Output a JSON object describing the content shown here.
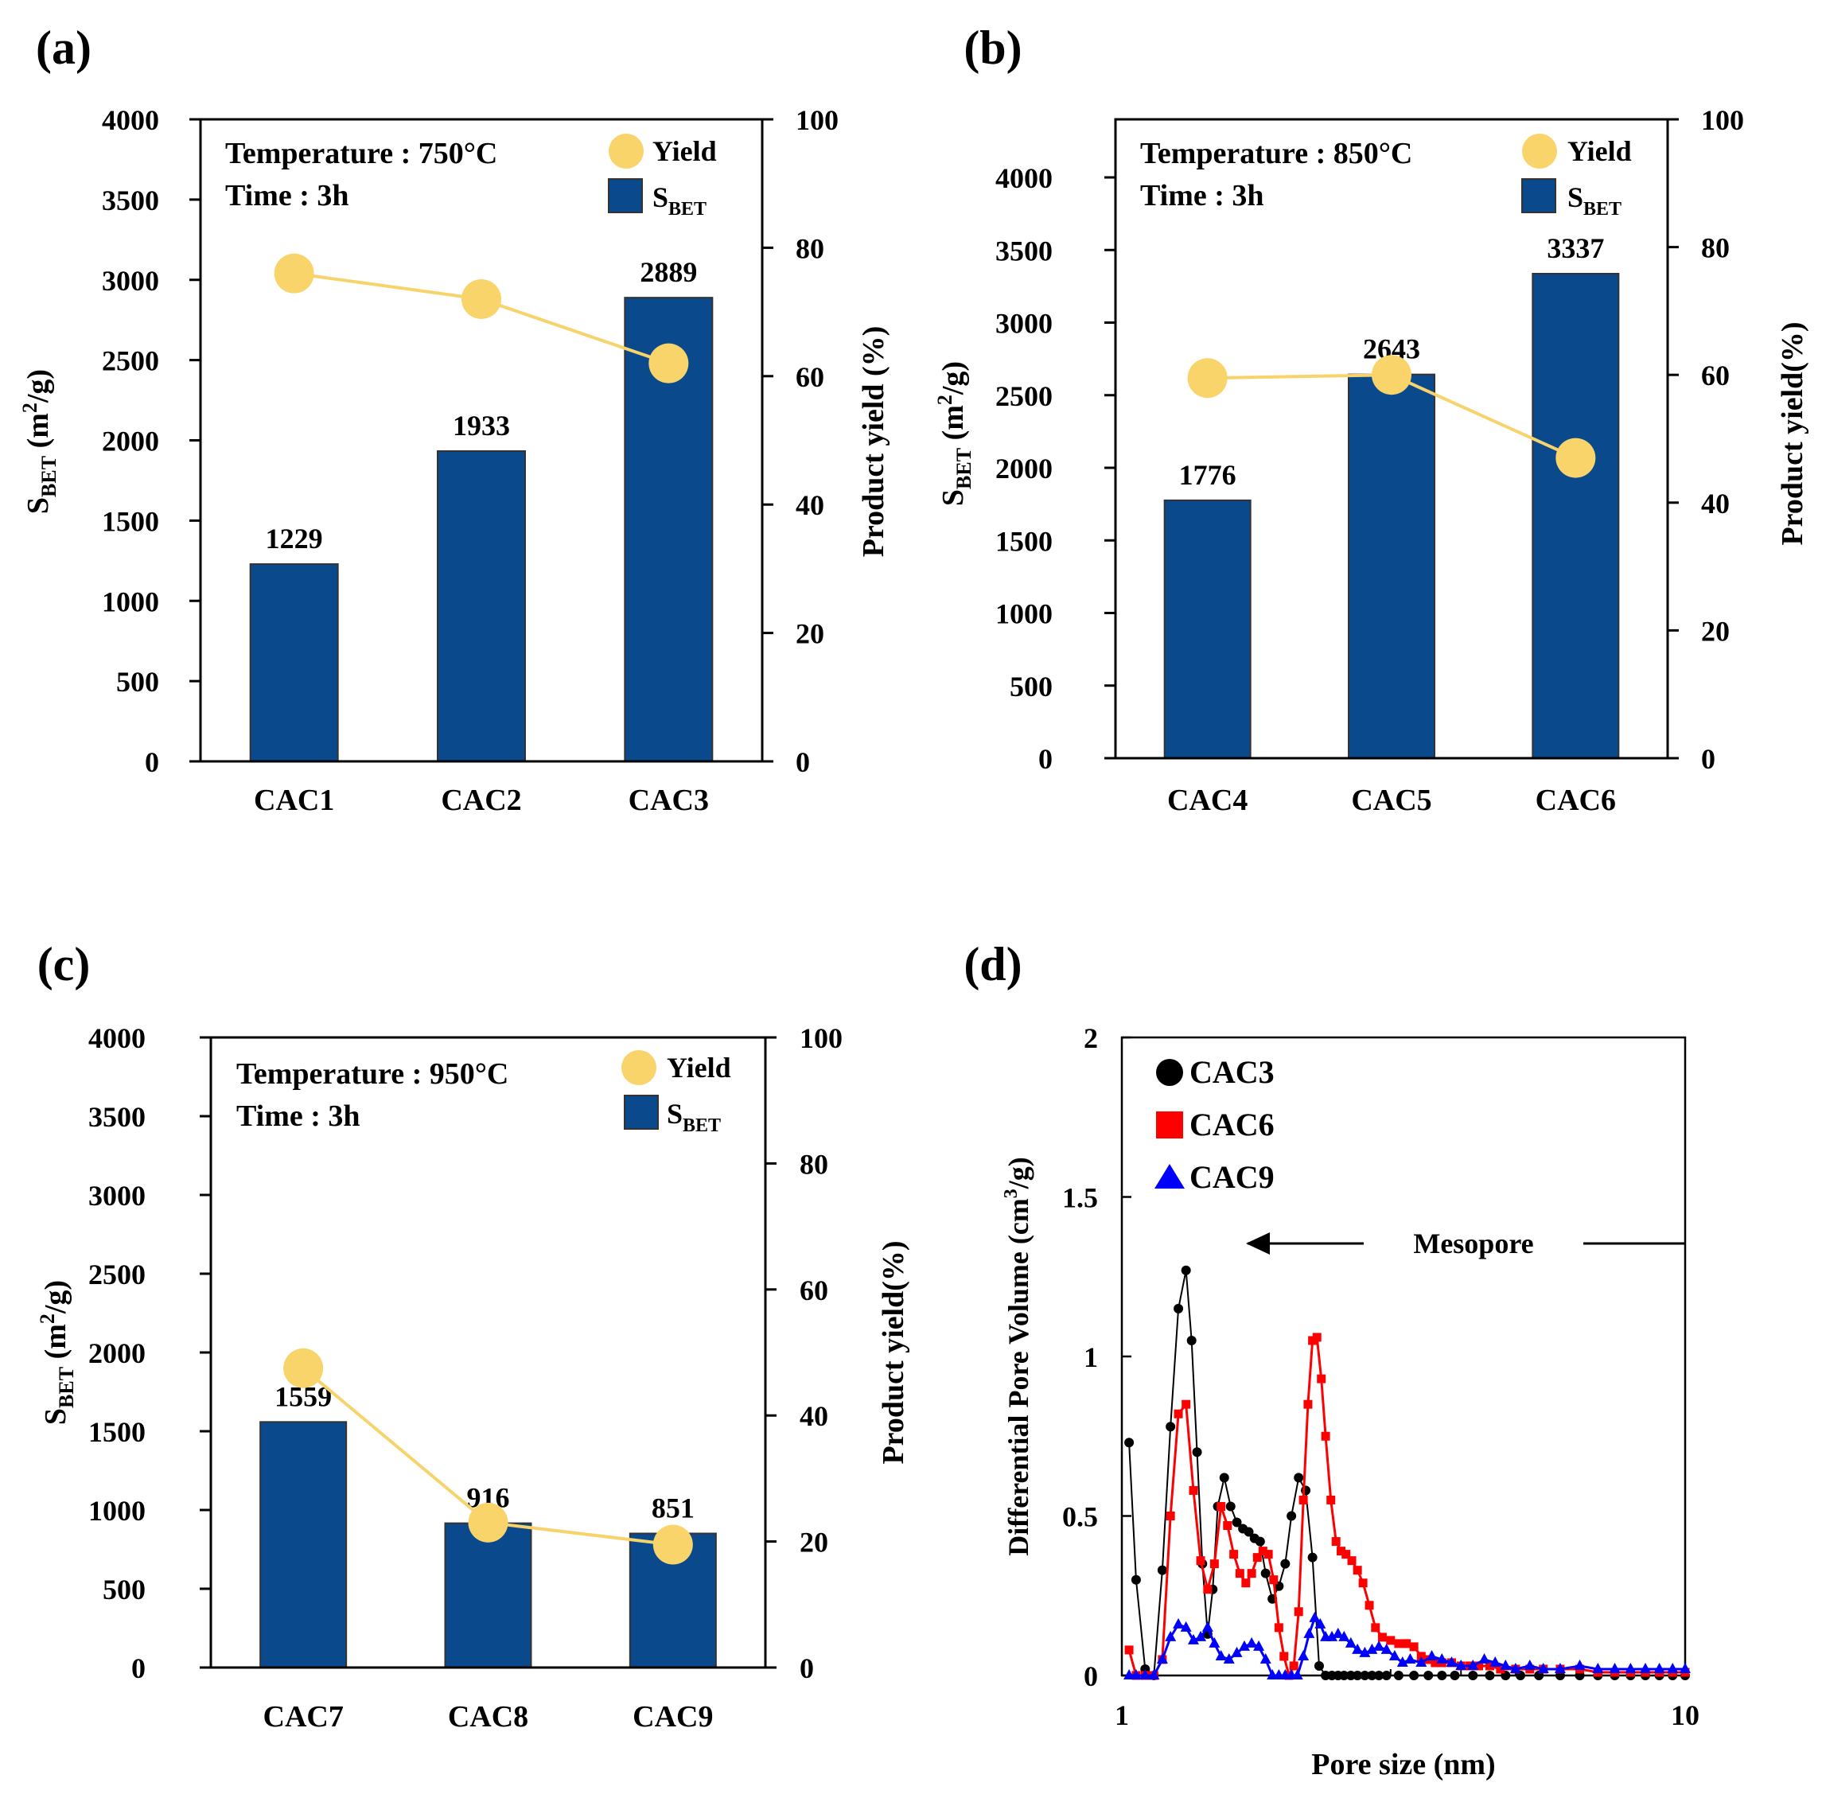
{
  "colors": {
    "bar": "#0a4a8c",
    "bar_edge": "#333333",
    "yield": "#f7d36b",
    "yield_marker": "#f9d46a",
    "black": "#000000",
    "red": "#ff0000",
    "blue": "#0000ff"
  },
  "chart_data": [
    {
      "id": "a",
      "type": "bar",
      "panel_label": "(a)",
      "categories": [
        "CAC1",
        "CAC2",
        "CAC3"
      ],
      "series": [
        {
          "name": "S_BET",
          "values": [
            1229,
            1933,
            2889
          ],
          "labels": [
            "1229",
            "1933",
            "2889"
          ]
        },
        {
          "name": "Yield",
          "axis": "right",
          "values": [
            76,
            72,
            62
          ]
        }
      ],
      "ylim": [
        0,
        4000
      ],
      "yticks": [
        "0",
        "500",
        "1000",
        "1500",
        "2000",
        "2500",
        "3000",
        "3500",
        "4000"
      ],
      "y2lim": [
        0,
        100
      ],
      "y2ticks": [
        "0",
        "20",
        "40",
        "60",
        "80",
        "100"
      ],
      "ylabel": {
        "main": "S",
        "sub": "BET",
        "rest": " (m",
        "sup": "2",
        "end": "/g)"
      },
      "y2label": "Product yield (%)",
      "annotation": [
        "Temperature : 750°C",
        "Time : 3h"
      ],
      "legend": {
        "yield": "Yield",
        "sbet_main": "S",
        "sbet_sub": "BET"
      }
    },
    {
      "id": "b",
      "type": "bar",
      "panel_label": "(b)",
      "categories": [
        "CAC4",
        "CAC5",
        "CAC6"
      ],
      "series": [
        {
          "name": "S_BET",
          "values": [
            1776,
            2643,
            3337
          ],
          "labels": [
            "1776",
            "2643",
            "3337"
          ]
        },
        {
          "name": "Yield",
          "axis": "right",
          "values": [
            59.5,
            60,
            47
          ]
        }
      ],
      "ylim": [
        0,
        4400
      ],
      "yticks": [
        "0",
        "500",
        "1000",
        "1500",
        "2000",
        "2500",
        "3000",
        "3500",
        "4000"
      ],
      "y2lim": [
        0,
        100
      ],
      "y2ticks": [
        "0",
        "20",
        "40",
        "60",
        "80",
        "100"
      ],
      "ylabel": {
        "main": "S",
        "sub": "BET",
        "rest": " (m",
        "sup": "2",
        "end": "/g)"
      },
      "y2label": "Product yield(%)",
      "annotation": [
        "Temperature : 850°C",
        "Time : 3h"
      ],
      "legend": {
        "yield": "Yield",
        "sbet_main": "S",
        "sbet_sub": "BET"
      }
    },
    {
      "id": "c",
      "type": "bar",
      "panel_label": "(c)",
      "categories": [
        "CAC7",
        "CAC8",
        "CAC9"
      ],
      "series": [
        {
          "name": "S_BET",
          "values": [
            1559,
            916,
            851
          ],
          "labels": [
            "1559",
            "916",
            "851"
          ]
        },
        {
          "name": "Yield",
          "axis": "right",
          "values": [
            47.5,
            23,
            19.5
          ]
        }
      ],
      "ylim": [
        0,
        4000
      ],
      "yticks": [
        "0",
        "500",
        "1000",
        "1500",
        "2000",
        "2500",
        "3000",
        "3500",
        "4000"
      ],
      "y2lim": [
        0,
        100
      ],
      "y2ticks": [
        "0",
        "20",
        "40",
        "60",
        "80",
        "100"
      ],
      "ylabel": {
        "main": "S",
        "sub": "BET",
        "rest": " (m",
        "sup": "2",
        "end": "/g)"
      },
      "y2label": "Product yield(%)",
      "annotation": [
        "Temperature : 950°C",
        "Time : 3h"
      ],
      "legend": {
        "yield": "Yield",
        "sbet_main": "S",
        "sbet_sub": "BET"
      }
    },
    {
      "id": "d",
      "type": "line",
      "panel_label": "(d)",
      "xscale": "log",
      "xlim": [
        1,
        10
      ],
      "xticks": [
        "1",
        "10"
      ],
      "ylim": [
        0,
        2
      ],
      "yticks": [
        "0",
        "0.5",
        "1",
        "1.5",
        "2"
      ],
      "xlabel": "Pore size (nm)",
      "ylabel": {
        "main": "Differential Pore Volume (cm",
        "sup": "3",
        "end": "/g)"
      },
      "annotation": "Mesopore",
      "series": [
        {
          "name": "CAC3",
          "marker": "circle",
          "x": [
            1.03,
            1.06,
            1.1,
            1.14,
            1.18,
            1.22,
            1.26,
            1.3,
            1.33,
            1.36,
            1.39,
            1.42,
            1.45,
            1.48,
            1.52,
            1.56,
            1.6,
            1.64,
            1.68,
            1.72,
            1.76,
            1.8,
            1.85,
            1.9,
            1.95,
            2.0,
            2.06,
            2.12,
            2.18,
            2.24,
            2.3,
            2.36,
            2.42,
            2.48,
            2.55,
            2.62,
            2.7,
            2.78,
            2.86,
            2.95,
            3.1,
            3.3,
            3.5,
            3.7,
            3.9,
            4.2,
            4.5,
            4.8,
            5.1,
            5.5,
            6,
            6.5,
            7,
            7.5,
            8,
            8.5,
            9,
            9.5,
            10
          ],
          "y": [
            0.73,
            0.3,
            0.02,
            0.0,
            0.33,
            0.78,
            1.15,
            1.27,
            1.05,
            0.7,
            0.35,
            0.13,
            0.27,
            0.53,
            0.62,
            0.53,
            0.48,
            0.46,
            0.45,
            0.43,
            0.42,
            0.32,
            0.24,
            0.28,
            0.35,
            0.5,
            0.62,
            0.58,
            0.37,
            0.03,
            0.0,
            0.0,
            0.0,
            0.0,
            0.0,
            0.0,
            0.0,
            0.0,
            0.0,
            0.0,
            0.0,
            0.0,
            0.0,
            0.0,
            0.0,
            0.0,
            0.0,
            0.0,
            0.0,
            0.0,
            0.0,
            0.0,
            0.0,
            0.0,
            0.0,
            0.0,
            0.0,
            0.0,
            0.0
          ]
        },
        {
          "name": "CAC6",
          "marker": "square",
          "x": [
            1.03,
            1.06,
            1.1,
            1.14,
            1.18,
            1.22,
            1.26,
            1.3,
            1.34,
            1.38,
            1.42,
            1.46,
            1.5,
            1.54,
            1.58,
            1.62,
            1.66,
            1.7,
            1.74,
            1.78,
            1.82,
            1.86,
            1.9,
            1.94,
            1.98,
            2.02,
            2.06,
            2.1,
            2.14,
            2.18,
            2.22,
            2.26,
            2.3,
            2.35,
            2.4,
            2.45,
            2.5,
            2.56,
            2.62,
            2.68,
            2.75,
            2.82,
            2.9,
            3.0,
            3.1,
            3.2,
            3.3,
            3.4,
            3.5,
            3.6,
            3.7,
            3.85,
            4.0,
            4.15,
            4.3,
            4.5,
            4.7,
            5.0,
            5.3,
            5.6,
            6,
            6.5,
            7,
            7.5,
            8,
            8.5,
            9,
            9.5,
            10
          ],
          "y": [
            0.08,
            0.0,
            0.0,
            0.0,
            0.05,
            0.5,
            0.82,
            0.85,
            0.58,
            0.36,
            0.27,
            0.35,
            0.53,
            0.47,
            0.38,
            0.32,
            0.29,
            0.32,
            0.37,
            0.39,
            0.38,
            0.3,
            0.15,
            0.06,
            0.0,
            0.03,
            0.2,
            0.55,
            0.85,
            1.05,
            1.06,
            0.93,
            0.75,
            0.55,
            0.42,
            0.39,
            0.38,
            0.36,
            0.33,
            0.29,
            0.22,
            0.15,
            0.12,
            0.11,
            0.1,
            0.1,
            0.09,
            0.06,
            0.05,
            0.04,
            0.04,
            0.04,
            0.03,
            0.03,
            0.03,
            0.03,
            0.02,
            0.02,
            0.02,
            0.02,
            0.02,
            0.02,
            0.01,
            0.01,
            0.01,
            0.01,
            0.01,
            0.01,
            0.01
          ]
        },
        {
          "name": "CAC9",
          "marker": "triangle",
          "x": [
            1.03,
            1.06,
            1.1,
            1.14,
            1.18,
            1.22,
            1.26,
            1.3,
            1.34,
            1.38,
            1.42,
            1.46,
            1.5,
            1.55,
            1.6,
            1.65,
            1.7,
            1.75,
            1.8,
            1.85,
            1.9,
            1.95,
            2.0,
            2.05,
            2.1,
            2.15,
            2.2,
            2.25,
            2.3,
            2.36,
            2.42,
            2.48,
            2.55,
            2.62,
            2.7,
            2.78,
            2.86,
            2.95,
            3.05,
            3.15,
            3.25,
            3.4,
            3.55,
            3.7,
            3.85,
            4.0,
            4.2,
            4.4,
            4.6,
            4.8,
            5.0,
            5.3,
            5.6,
            6,
            6.5,
            7,
            7.5,
            8,
            8.5,
            9,
            9.5,
            10
          ],
          "y": [
            0.0,
            0.0,
            0.0,
            0.0,
            0.05,
            0.12,
            0.16,
            0.15,
            0.11,
            0.12,
            0.15,
            0.1,
            0.06,
            0.05,
            0.07,
            0.09,
            0.1,
            0.09,
            0.05,
            0.0,
            0.0,
            0.0,
            0.0,
            0.0,
            0.06,
            0.13,
            0.18,
            0.16,
            0.12,
            0.12,
            0.13,
            0.12,
            0.1,
            0.08,
            0.07,
            0.08,
            0.09,
            0.08,
            0.06,
            0.04,
            0.05,
            0.04,
            0.06,
            0.05,
            0.04,
            0.03,
            0.03,
            0.05,
            0.04,
            0.03,
            0.02,
            0.03,
            0.02,
            0.02,
            0.03,
            0.02,
            0.02,
            0.02,
            0.02,
            0.02,
            0.02,
            0.02
          ]
        }
      ]
    }
  ]
}
